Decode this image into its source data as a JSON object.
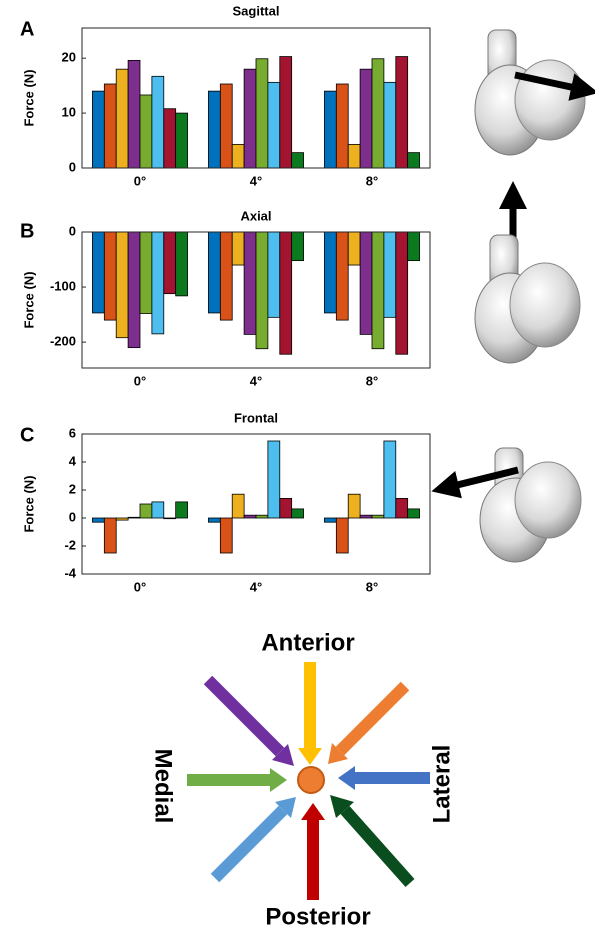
{
  "chart_data": [
    {
      "type": "bar",
      "panel": "A",
      "title": "Sagittal",
      "ylabel": "Force (N)",
      "categories": [
        "0°",
        "4°",
        "8°"
      ],
      "ylim": [
        0,
        25.5
      ],
      "yticks": [
        0,
        10,
        20
      ],
      "series": [
        {
          "color": "#0072BD",
          "values": [
            14,
            14,
            14
          ]
        },
        {
          "color": "#D95319",
          "values": [
            15.3,
            15.3,
            15.3
          ]
        },
        {
          "color": "#EDB120",
          "values": [
            18,
            4.3,
            4.3
          ]
        },
        {
          "color": "#7E2F8E",
          "values": [
            19.6,
            18,
            18
          ]
        },
        {
          "color": "#77AC30",
          "values": [
            13.3,
            19.9,
            19.9
          ]
        },
        {
          "color": "#4DBEEE",
          "values": [
            16.7,
            15.6,
            15.6
          ]
        },
        {
          "color": "#A2142F",
          "values": [
            10.8,
            20.3,
            20.3
          ]
        },
        {
          "color": "#0B7A1E",
          "values": [
            10,
            2.8,
            2.8
          ]
        }
      ]
    },
    {
      "type": "bar",
      "panel": "B",
      "title": "Axial",
      "ylabel": "Force (N)",
      "categories": [
        "0°",
        "4°",
        "8°"
      ],
      "ylim": [
        -247,
        0
      ],
      "yticks": [
        -200,
        -100,
        0
      ],
      "series": [
        {
          "color": "#0072BD",
          "values": [
            -147,
            -147,
            -147
          ]
        },
        {
          "color": "#D95319",
          "values": [
            -160,
            -160,
            -160
          ]
        },
        {
          "color": "#EDB120",
          "values": [
            -192,
            -60,
            -60
          ]
        },
        {
          "color": "#7E2F8E",
          "values": [
            -210,
            -186,
            -186
          ]
        },
        {
          "color": "#77AC30",
          "values": [
            -148,
            -212,
            -212
          ]
        },
        {
          "color": "#4DBEEE",
          "values": [
            -185,
            -155,
            -155
          ]
        },
        {
          "color": "#A2142F",
          "values": [
            -112,
            -222,
            -222
          ]
        },
        {
          "color": "#0B7A1E",
          "values": [
            -116,
            -52,
            -52
          ]
        }
      ]
    },
    {
      "type": "bar",
      "panel": "C",
      "title": "Frontal",
      "ylabel": "Force (N)",
      "categories": [
        "0°",
        "4°",
        "8°"
      ],
      "ylim": [
        -4,
        6
      ],
      "yticks": [
        -4,
        -2,
        0,
        2,
        4,
        6
      ],
      "series": [
        {
          "color": "#0072BD",
          "values": [
            -0.3,
            -0.3,
            -0.3
          ]
        },
        {
          "color": "#D95319",
          "values": [
            -2.5,
            -2.5,
            -2.5
          ]
        },
        {
          "color": "#EDB120",
          "values": [
            -0.15,
            1.7,
            1.7
          ]
        },
        {
          "color": "#7E2F8E",
          "values": [
            0.05,
            0.2,
            0.2
          ]
        },
        {
          "color": "#77AC30",
          "values": [
            1.0,
            0.2,
            0.2
          ]
        },
        {
          "color": "#4DBEEE",
          "values": [
            1.15,
            5.5,
            5.5
          ]
        },
        {
          "color": "#A2142F",
          "values": [
            -0.05,
            1.4,
            1.4
          ]
        },
        {
          "color": "#0B7A1E",
          "values": [
            1.15,
            0.65,
            0.65
          ]
        }
      ]
    }
  ],
  "diagram": {
    "anterior": "Anterior",
    "posterior": "Posterior",
    "medial": "Medial",
    "lateral": "Lateral"
  }
}
